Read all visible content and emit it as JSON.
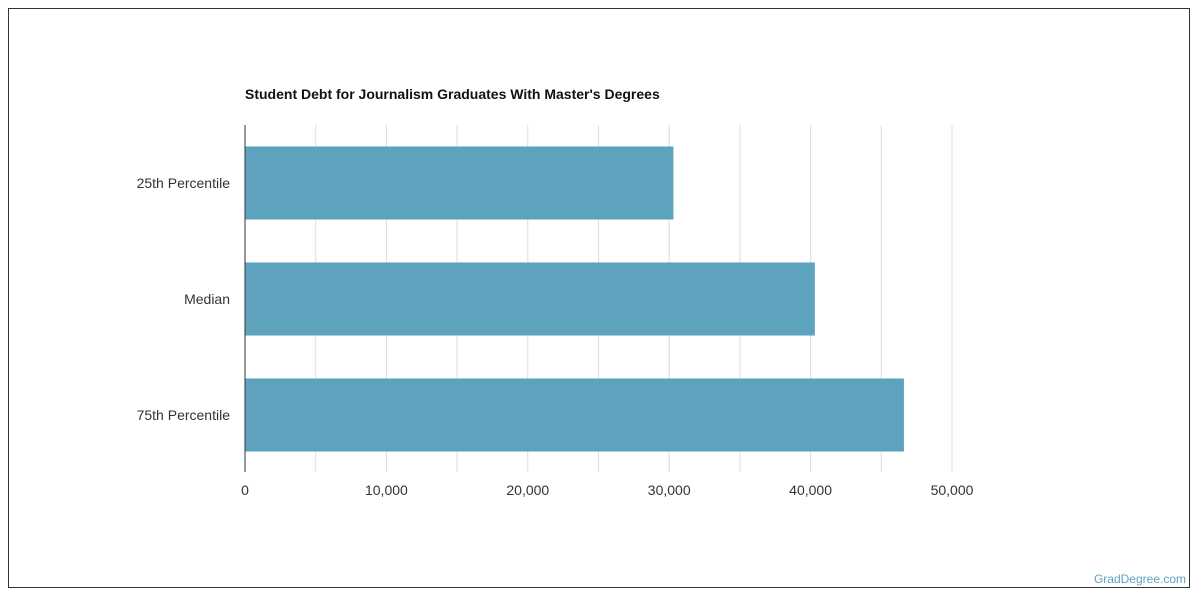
{
  "chart_data": {
    "type": "bar",
    "orientation": "horizontal",
    "title": "Student Debt for Journalism Graduates With Master's Degrees",
    "categories": [
      "25th Percentile",
      "Median",
      "75th Percentile"
    ],
    "values": [
      30300,
      40300,
      46600
    ],
    "xlim": [
      0,
      50000
    ],
    "xticks": [
      0,
      10000,
      20000,
      30000,
      40000,
      50000
    ],
    "xtick_labels": [
      "0",
      "10,000",
      "20,000",
      "30,000",
      "40,000",
      "50,000"
    ],
    "xlabel": "",
    "ylabel": "",
    "grid": true,
    "bar_color": "#5ea3be"
  },
  "credit": "GradDegree.com"
}
